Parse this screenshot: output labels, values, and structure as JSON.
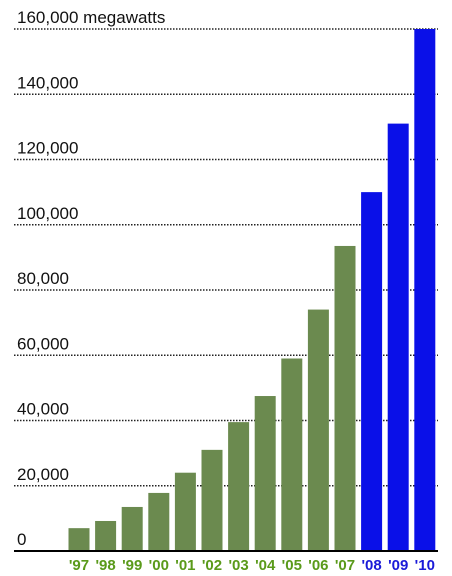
{
  "chart_data": {
    "type": "bar",
    "title": "",
    "xlabel": "",
    "ylabel": "",
    "y_unit_label": "megawatts",
    "categories": [
      "'97",
      "'98",
      "'99",
      "'00",
      "'01",
      "'02",
      "'03",
      "'04",
      "'05",
      "'06",
      "'07",
      "'08",
      "'09",
      "'10"
    ],
    "values": [
      7000,
      9200,
      13500,
      17800,
      24000,
      31000,
      39500,
      47500,
      59000,
      74000,
      93500,
      110000,
      131000,
      160000
    ],
    "ylim": [
      0,
      160000
    ],
    "yticks": [
      0,
      20000,
      40000,
      60000,
      80000,
      100000,
      120000,
      140000,
      160000
    ],
    "ytick_labels": [
      "0",
      "20,000",
      "40,000",
      "60,000",
      "80,000",
      "100,000",
      "120,000",
      "140,000",
      "160,000"
    ],
    "grid": true,
    "legend": "none",
    "colors": {
      "historical": "#6b8a4f",
      "projected": "#0a10e8",
      "historical_label": "#5a9a1a",
      "projected_label": "#1a1ad8",
      "grid": "#222222",
      "baseline": "#000000"
    },
    "projected_from_index": 11
  }
}
